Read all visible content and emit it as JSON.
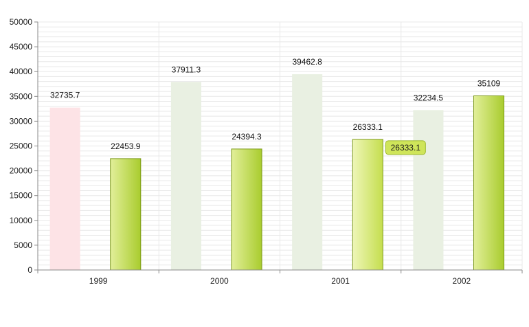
{
  "chart_data": {
    "type": "bar",
    "title": "",
    "xlabel": "",
    "ylabel": "",
    "categories": [
      "1999",
      "2000",
      "2001",
      "2002"
    ],
    "series": [
      {
        "values": [
          32735.7,
          37911.3,
          39462.8,
          32234.5
        ],
        "faded": true
      },
      {
        "values": [
          22453.9,
          24394.3,
          26333.1,
          35109
        ],
        "faded": false
      }
    ],
    "ylim": [
      0,
      50000
    ],
    "yticks": [
      "0",
      "5000",
      "10000",
      "15000",
      "20000",
      "25000",
      "30000",
      "35000",
      "40000",
      "45000",
      "50000"
    ],
    "grid": true,
    "tooltip": {
      "text": "26333.1",
      "series": 1,
      "category": 2
    },
    "colors": {
      "faded_first": "#fde3e6",
      "faded_rest": "#e9f0e2",
      "bar_light": "#e2ef9a",
      "bar_dark": "#a9cc2e",
      "bar_stroke": "#7d9a1c",
      "highlight_light": "#eef6b8",
      "highlight_dark": "#c5de4e",
      "tooltip_fill": "#cfe55a",
      "tooltip_stroke": "#9cb92a",
      "grid": "#e8e8e8",
      "axis": "#888888"
    }
  }
}
